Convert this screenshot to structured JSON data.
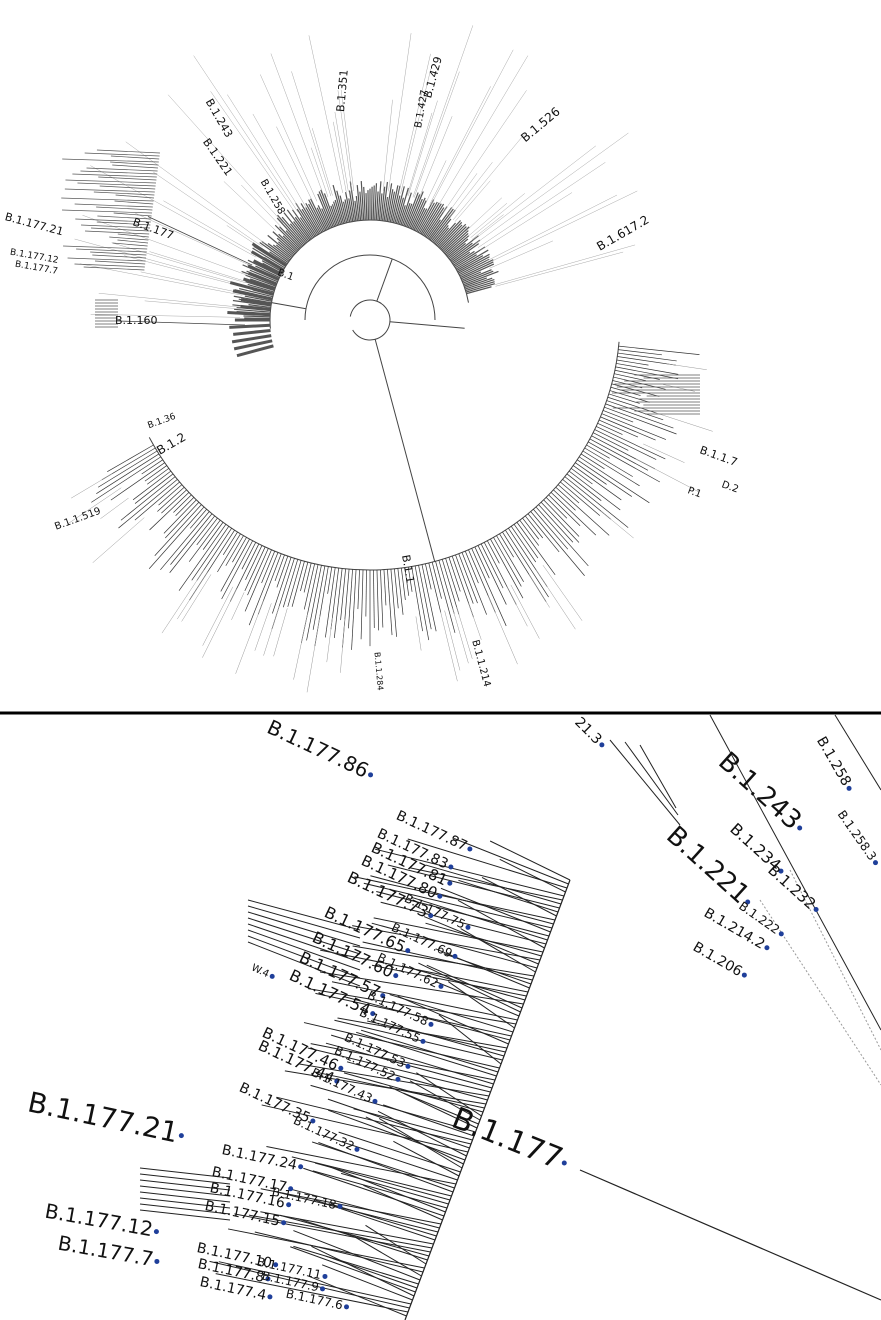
{
  "overview": {
    "labels": [
      "B.1.429",
      "B.1.351",
      "B.1.427",
      "B.1.526",
      "B.1.617.2",
      "B.1.243",
      "B.1.221",
      "B.1.258",
      "B.1.177",
      "B.1.177.21",
      "B.1.177.12",
      "B.1.177.7",
      "B.1.160",
      "B.1.36",
      "B.1.2",
      "B.1.1.519",
      "B.1",
      "B.1.1",
      "B.1.1.214",
      "B.1.1.7",
      "D.2",
      "P.1",
      "B.1.1.284"
    ]
  },
  "detail": {
    "labels": [
      "B.1.177.86",
      "B.1.177.87",
      "B.1.177.83",
      "B.1.177.81",
      "B.1.177.80",
      "B.1.177.73",
      "B.1.177.75",
      "B.1.177.69",
      "B.1.177.65",
      "B.1.177.62",
      "B.1.177.60",
      "B.1.177.58",
      "B.1.177.57",
      "B.1.177.55",
      "B.1.177.54",
      "W.4",
      "B.1.177.53",
      "B.1.177.52",
      "B.1.177.46",
      "B.1.177.44",
      "B.1.177.43",
      "B.1.177.35",
      "B.1.177.32",
      "B.1.177",
      "B.1.177.21",
      "B.1.177.24",
      "B.1.177.18",
      "B.1.177.17",
      "B.1.177.16",
      "B.1.177.15",
      "B.1.177.12",
      "B.1.177.7",
      "B.1.177.11",
      "B.1.177.10",
      "B.1.177.9",
      "B.1.177.8",
      "B.1.177.6",
      "B.1.177.4",
      "B.1.243",
      "B.1.221",
      "B.1.234",
      "B.1.232",
      "B.1.222",
      "B.1.214.2",
      "B.1.206",
      "B.1.258",
      "B.1.258.3",
      "21.3"
    ]
  }
}
